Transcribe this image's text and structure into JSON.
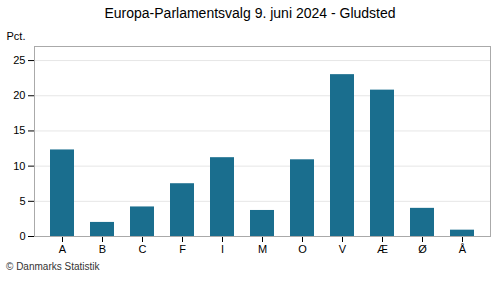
{
  "chart_data": {
    "type": "bar",
    "title": "Europa-Parlamentsvalg 9. juni 2024 - Gludsted",
    "categories": [
      "A",
      "B",
      "C",
      "F",
      "I",
      "M",
      "O",
      "V",
      "Æ",
      "Ø",
      "Å"
    ],
    "values": [
      12.3,
      2.0,
      4.2,
      7.5,
      11.2,
      3.7,
      10.9,
      23.0,
      20.8,
      4.0,
      0.9
    ],
    "color": "#1a6e8e",
    "ylabel": "Pct.",
    "ylim": [
      0,
      27
    ],
    "yticks": [
      0,
      5,
      10,
      15,
      20,
      25
    ],
    "grid": true,
    "caption": "© Danmarks Statistik"
  }
}
